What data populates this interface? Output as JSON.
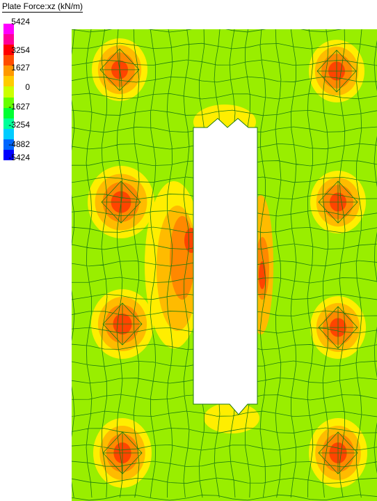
{
  "title": "Plate Force:xz (kN/m)",
  "legend": {
    "labels": [
      "5424",
      "3254",
      "1627",
      "0",
      "-1627",
      "-3254",
      "-4882",
      "-5424"
    ],
    "colors": [
      "#ff00ff",
      "#ff0099",
      "#ff0000",
      "#ff4d00",
      "#ff9900",
      "#ffcc00",
      "#ccff00",
      "#66ff00",
      "#00ff33",
      "#00ff99",
      "#00ccff",
      "#0066ff",
      "#0000ff"
    ]
  },
  "plot_colors": {
    "background": "#99ee00",
    "mesh": "#1c7a10",
    "high": "#ff4400",
    "mid_high": "#ff8800",
    "mid": "#ffbb00",
    "low": "#ffee00",
    "hole": "#ffffff"
  }
}
